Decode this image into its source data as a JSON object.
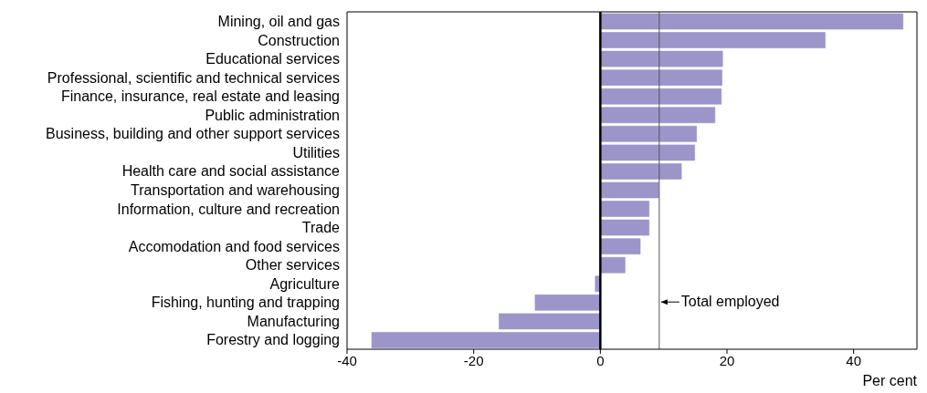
{
  "chart_data": {
    "type": "bar",
    "orientation": "horizontal",
    "xlabel": "Per cent",
    "categories": [
      "Mining, oil and gas",
      "Construction",
      "Educational services",
      "Professional, scientific and technical services",
      "Finance, insurance, real estate and leasing",
      "Public administration",
      "Business, building and other support services",
      "Utilities",
      "Health care and social assistance",
      "Transportation and warehousing",
      "Information, culture and recreation",
      "Trade",
      "Accomodation and food services",
      "Other services",
      "Agriculture",
      "Fishing, hunting and trapping",
      "Manufacturing",
      "Forestry and logging"
    ],
    "values": [
      47.8,
      35.5,
      19.3,
      19.2,
      19.1,
      18.1,
      15.2,
      14.9,
      12.8,
      9.2,
      7.7,
      7.7,
      6.3,
      3.9,
      -0.8,
      -10.3,
      -16.0,
      -36.1
    ],
    "color": "#9b95c9",
    "xlim": [
      -40,
      50
    ],
    "xticks": [
      -40,
      -20,
      0,
      20,
      40
    ],
    "ref_lines": [
      {
        "axis": "x",
        "value": 0,
        "color": "#000000"
      },
      {
        "axis": "x",
        "value": 9.3,
        "label": "Total employed",
        "color": "#555555"
      }
    ],
    "grid": false
  }
}
